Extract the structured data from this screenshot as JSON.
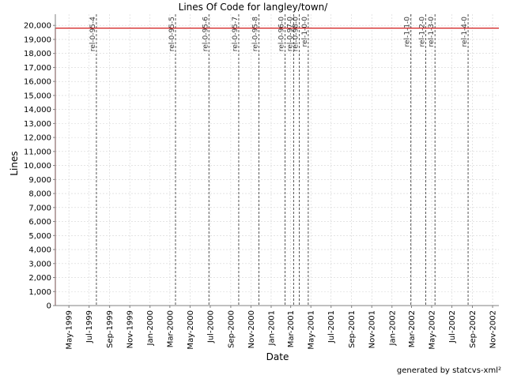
{
  "chart_data": {
    "type": "line",
    "title": "Lines Of Code for langley/town/",
    "xlabel": "Date",
    "ylabel": "Lines",
    "xlim": [
      "1999-03-21",
      "2002-11-20"
    ],
    "ylim": [
      0,
      20800
    ],
    "y_ticks": [
      0,
      1000,
      2000,
      3000,
      4000,
      5000,
      6000,
      7000,
      8000,
      9000,
      10000,
      11000,
      12000,
      13000,
      14000,
      15000,
      16000,
      17000,
      18000,
      19000,
      20000
    ],
    "x_ticks": [
      {
        "date": "1999-05-01",
        "label": "May-1999"
      },
      {
        "date": "1999-07-01",
        "label": "Jul-1999"
      },
      {
        "date": "1999-09-01",
        "label": "Sep-1999"
      },
      {
        "date": "1999-11-01",
        "label": "Nov-1999"
      },
      {
        "date": "2000-01-01",
        "label": "Jan-2000"
      },
      {
        "date": "2000-03-01",
        "label": "Mar-2000"
      },
      {
        "date": "2000-05-01",
        "label": "May-2000"
      },
      {
        "date": "2000-07-01",
        "label": "Jul-2000"
      },
      {
        "date": "2000-09-01",
        "label": "Sep-2000"
      },
      {
        "date": "2000-11-01",
        "label": "Nov-2000"
      },
      {
        "date": "2001-01-01",
        "label": "Jan-2001"
      },
      {
        "date": "2001-03-01",
        "label": "Mar-2001"
      },
      {
        "date": "2001-05-01",
        "label": "May-2001"
      },
      {
        "date": "2001-07-01",
        "label": "Jul-2001"
      },
      {
        "date": "2001-09-01",
        "label": "Sep-2001"
      },
      {
        "date": "2001-11-01",
        "label": "Nov-2001"
      },
      {
        "date": "2002-01-01",
        "label": "Jan-2002"
      },
      {
        "date": "2002-03-01",
        "label": "Mar-2002"
      },
      {
        "date": "2002-05-01",
        "label": "May-2002"
      },
      {
        "date": "2002-07-01",
        "label": "Jul-2002"
      },
      {
        "date": "2002-09-01",
        "label": "Sep-2002"
      },
      {
        "date": "2002-11-01",
        "label": "Nov-2002"
      }
    ],
    "series": [
      {
        "points": [
          {
            "x": "1999-03-21",
            "y": 0
          },
          {
            "x": "1999-03-21",
            "y": 19800
          },
          {
            "x": "2002-11-20",
            "y": 19800
          }
        ]
      }
    ],
    "markers": [
      {
        "date": "1999-07-23",
        "label": "rel-0-95-4"
      },
      {
        "date": "2000-03-18",
        "label": "rel-0-95-5"
      },
      {
        "date": "2000-06-27",
        "label": "rel-0-95-6"
      },
      {
        "date": "2000-09-25",
        "label": "rel-0-95-7"
      },
      {
        "date": "2000-11-25",
        "label": "rel-0-95-8"
      },
      {
        "date": "2001-02-12",
        "label": "rel-0-96-0"
      },
      {
        "date": "2001-03-10",
        "label": "rel-0-97-0"
      },
      {
        "date": "2001-03-27",
        "label": "rel-0-98-0"
      },
      {
        "date": "2001-04-23",
        "label": "rel-1-0-0"
      },
      {
        "date": "2002-02-27",
        "label": "rel-1-1-0"
      },
      {
        "date": "2002-04-13",
        "label": "rel-1-2-0"
      },
      {
        "date": "2002-05-11",
        "label": "rel-1-3-0"
      },
      {
        "date": "2002-08-19",
        "label": "rel-1-4-0"
      }
    ],
    "line_color": "#cc0000",
    "grid": true
  },
  "footer": "generated by statcvs-xml²"
}
